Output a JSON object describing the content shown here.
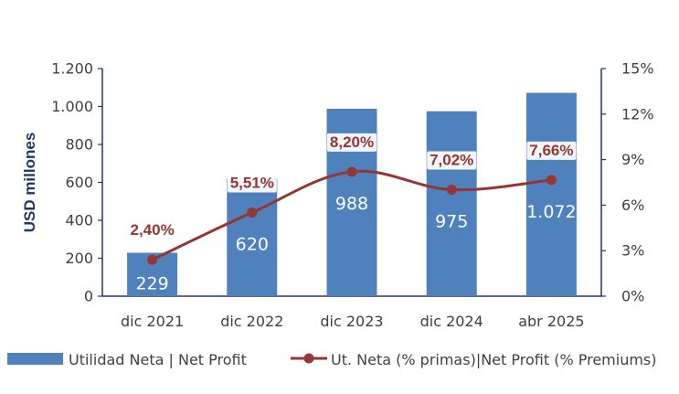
{
  "chart_data": {
    "type": "bar",
    "categories": [
      "dic 2021",
      "dic 2022",
      "dic 2023",
      "dic 2024",
      "abr 2025"
    ],
    "series": [
      {
        "name": "Utilidad Neta | Net Profit",
        "kind": "bar",
        "axis": "left",
        "color": "#4F81BD",
        "values": [
          229,
          620,
          988,
          975,
          1072
        ],
        "labels": [
          "229",
          "620",
          "988",
          "975",
          "1.072"
        ]
      },
      {
        "name": "Ut. Neta (% primas)|Net Profit (% Premiums)",
        "kind": "line",
        "axis": "right",
        "color": "#943634",
        "values": [
          2.4,
          5.51,
          8.2,
          7.02,
          7.66
        ],
        "labels": [
          "2,40%",
          "5,51%",
          "8,20%",
          "7,02%",
          "7,66%"
        ]
      }
    ],
    "ylabel": "USD millones",
    "ylim": [
      0,
      1200
    ],
    "y_ticks": [
      0,
      200,
      400,
      600,
      800,
      1000,
      1200
    ],
    "y_tick_labels": [
      "0",
      "200",
      "400",
      "600",
      "800",
      "1.000",
      "1.200"
    ],
    "y2lim": [
      0,
      15
    ],
    "y2_ticks": [
      0,
      3,
      6,
      9,
      12,
      15
    ],
    "y2_tick_labels": [
      "0%",
      "3%",
      "6%",
      "9%",
      "12%",
      "15%"
    ],
    "grid": false,
    "legend": "bottom",
    "axis_color": "#1F3864"
  }
}
